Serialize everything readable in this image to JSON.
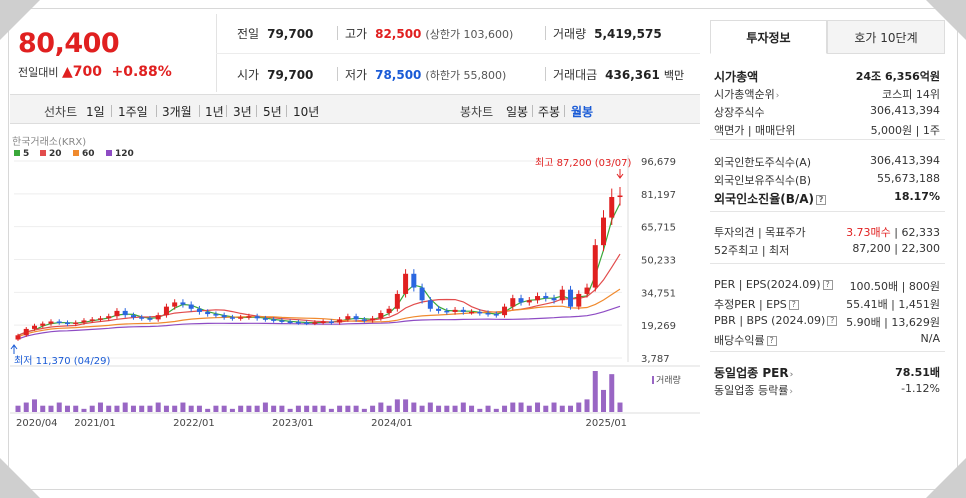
{
  "header": {
    "price": "80,400",
    "prev_label": "전일대비",
    "change_symbol": "▲",
    "change": "700",
    "change_pct": "+0.88%"
  },
  "stats": {
    "prev_close_label": "전일",
    "prev_close": "79,700",
    "high_label": "고가",
    "high": "82,500",
    "upper_limit": "(상한가 103,600)",
    "volume_label": "거래량",
    "volume": "5,419,575",
    "open_label": "시가",
    "open": "79,700",
    "low_label": "저가",
    "low": "78,500",
    "lower_limit": "(하한가 55,800)",
    "amount_label": "거래대금",
    "amount": "436,361",
    "amount_unit": "백만"
  },
  "period_tabs": {
    "label": "선차트",
    "items": [
      "1일",
      "1주일",
      "3개월",
      "1년",
      "3년",
      "5년",
      "10년"
    ]
  },
  "candle_tabs": {
    "label": "봉차트",
    "items": [
      "일봉",
      "주봉",
      "월봉"
    ],
    "active": "월봉"
  },
  "chart_data": {
    "type": "candlestick",
    "source_label": "한국거래소(KRX)",
    "legend": [
      {
        "name": "5",
        "color": "#3aa83a"
      },
      {
        "name": "20",
        "color": "#e24c4c"
      },
      {
        "name": "60",
        "color": "#f08a2e"
      },
      {
        "name": "120",
        "color": "#8e4cc4"
      }
    ],
    "y_ticks": [
      "96,679",
      "81,197",
      "65,715",
      "50,233",
      "34,751",
      "19,269",
      "3,787"
    ],
    "ylim": [
      3787,
      96679
    ],
    "x_ticks": [
      "2020/04",
      "2021/01",
      "2022/01",
      "2023/01",
      "2024/01",
      "2025/01"
    ],
    "max_label": "최고 87,200 (03/07)",
    "min_label": "최저 11,370 (04/29)",
    "volume_label": "거래량",
    "up_color": "#e02020",
    "down_color": "#2a66e0",
    "closes": [
      14500,
      17500,
      19000,
      20000,
      21000,
      20500,
      19800,
      20500,
      21500,
      22000,
      22500,
      23500,
      26000,
      24000,
      23000,
      22500,
      22000,
      24000,
      28000,
      30000,
      29000,
      27000,
      25500,
      24500,
      24000,
      23000,
      22500,
      23000,
      23500,
      22500,
      22000,
      21500,
      21000,
      20800,
      20500,
      20300,
      20600,
      21000,
      20500,
      22000,
      23500,
      22000,
      21500,
      22500,
      25000,
      27000,
      34000,
      43500,
      37000,
      31000,
      27000,
      26000,
      25500,
      26500,
      25500,
      25500,
      25000,
      24500,
      24000,
      28000,
      32000,
      30000,
      31000,
      33000,
      32000,
      31000,
      36000,
      28000,
      34000,
      37000,
      57000,
      70000,
      79700,
      80400
    ],
    "opens": [
      12500,
      14500,
      17500,
      19000,
      20000,
      21000,
      20500,
      19800,
      20500,
      21500,
      22000,
      22500,
      23500,
      26000,
      24000,
      23000,
      22500,
      22000,
      24000,
      28000,
      30000,
      29000,
      27000,
      25500,
      24500,
      24000,
      23000,
      22500,
      23000,
      23500,
      22500,
      22000,
      21500,
      21000,
      20800,
      20500,
      20300,
      20600,
      21000,
      20500,
      22000,
      23500,
      22000,
      21500,
      22500,
      25000,
      27000,
      34000,
      43500,
      37000,
      31000,
      27000,
      26000,
      25500,
      26500,
      25500,
      25500,
      25000,
      24500,
      24000,
      28000,
      32000,
      30000,
      31000,
      33000,
      32000,
      31000,
      36000,
      28000,
      34000,
      37000,
      57000,
      70000,
      79700
    ],
    "volumes": [
      2,
      3,
      4,
      2,
      2,
      3,
      2,
      2,
      1,
      2,
      3,
      2,
      2,
      3,
      2,
      2,
      2,
      3,
      2,
      2,
      3,
      2,
      2,
      1,
      2,
      2,
      1,
      2,
      2,
      2,
      3,
      2,
      2,
      1,
      2,
      2,
      2,
      2,
      1,
      2,
      2,
      2,
      1,
      2,
      3,
      2,
      4,
      4,
      3,
      2,
      3,
      2,
      2,
      2,
      3,
      2,
      1,
      2,
      1,
      2,
      3,
      3,
      2,
      3,
      2,
      3,
      2,
      2,
      3,
      4,
      13,
      7,
      12,
      3
    ]
  },
  "right_panel": {
    "tabs": [
      "투자정보",
      "호가 10단계"
    ],
    "market_cap_label": "시가총액",
    "market_cap": "24조 6,356억원",
    "market_cap_rank_label": "시가총액순위",
    "market_cap_rank": "코스피 14위",
    "shares_label": "상장주식수",
    "shares": "306,413,394",
    "par_label": "액면가 | 매매단위",
    "par": "5,000원 | 1주",
    "foreign_limit_label": "외국인한도주식수(A)",
    "foreign_limit": "306,413,394",
    "foreign_hold_label": "외국인보유주식수(B)",
    "foreign_hold": "55,673,188",
    "foreign_ratio_label": "외국인소진율(B/A)",
    "foreign_ratio": "18.17%",
    "opinion_label": "투자의견 | 목표주가",
    "opinion": "3.73매수",
    "target_price": "62,333",
    "week52_label": "52주최고 | 최저",
    "week52": "87,200 | 22,300",
    "per_label": "PER | EPS(2024.09)",
    "per": "100.50배 | 800원",
    "est_per_label": "추정PER | EPS",
    "est_per": "55.41배 | 1,451원",
    "pbr_label": "PBR | BPS (2024.09)",
    "pbr": "5.90배 | 13,629원",
    "dividend_label": "배당수익률",
    "dividend": "N/A",
    "sector_per_label": "동일업종 PER",
    "sector_per": "78.51배",
    "sector_change_label": "동일업종 등락률",
    "sector_change": "-1.12%"
  }
}
